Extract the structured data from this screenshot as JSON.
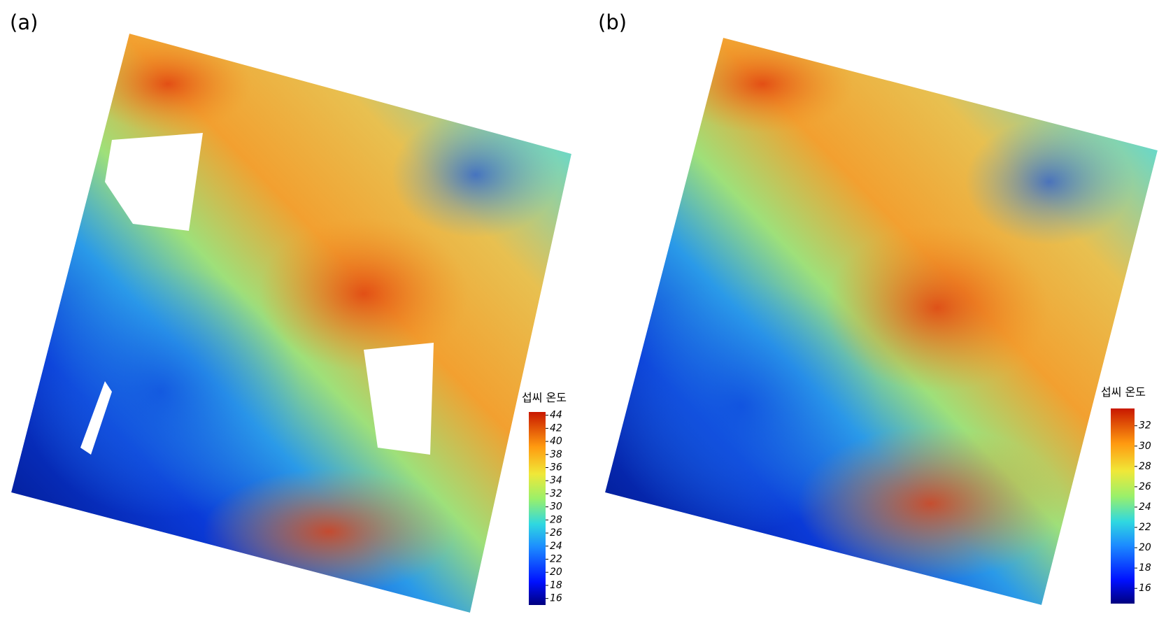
{
  "panels": [
    {
      "label": "(a)",
      "colorbar": {
        "title": "섭씨 온도",
        "lim": [
          15,
          44.5
        ],
        "ticks": [
          16,
          18,
          20,
          22,
          24,
          26,
          28,
          30,
          32,
          34,
          36,
          38,
          40,
          42,
          44
        ]
      }
    },
    {
      "label": "(b)",
      "colorbar": {
        "title": "섭씨 온도",
        "lim": [
          14.5,
          33.7
        ],
        "ticks": [
          16,
          18,
          20,
          22,
          24,
          26,
          28,
          30,
          32
        ]
      }
    }
  ]
}
